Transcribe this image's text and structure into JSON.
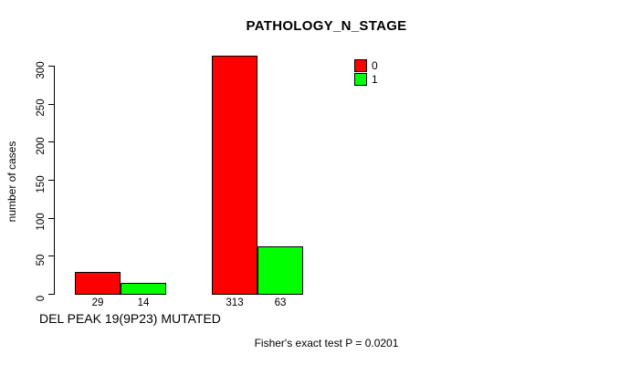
{
  "chart_data": {
    "type": "bar",
    "title": "PATHOLOGY_N_STAGE",
    "ylabel": "number of cases",
    "xlabel": "DEL PEAK 19(9P23) MUTATED",
    "annotation": "Fisher's exact test P = 0.0201",
    "grouped": true,
    "num_groups": 2,
    "series": [
      {
        "name": "0",
        "color": "#ff0000",
        "values": [
          29,
          313
        ]
      },
      {
        "name": "1",
        "color": "#00ff00",
        "values": [
          14,
          63
        ]
      }
    ],
    "bar_value_labels_shown": true,
    "ylim": [
      0,
      300
    ],
    "yticks": [
      0,
      50,
      100,
      150,
      200,
      250,
      300
    ],
    "grid": false,
    "legend_position": "top-right",
    "axis_color": "#000000",
    "background_color": "#ffffff"
  }
}
